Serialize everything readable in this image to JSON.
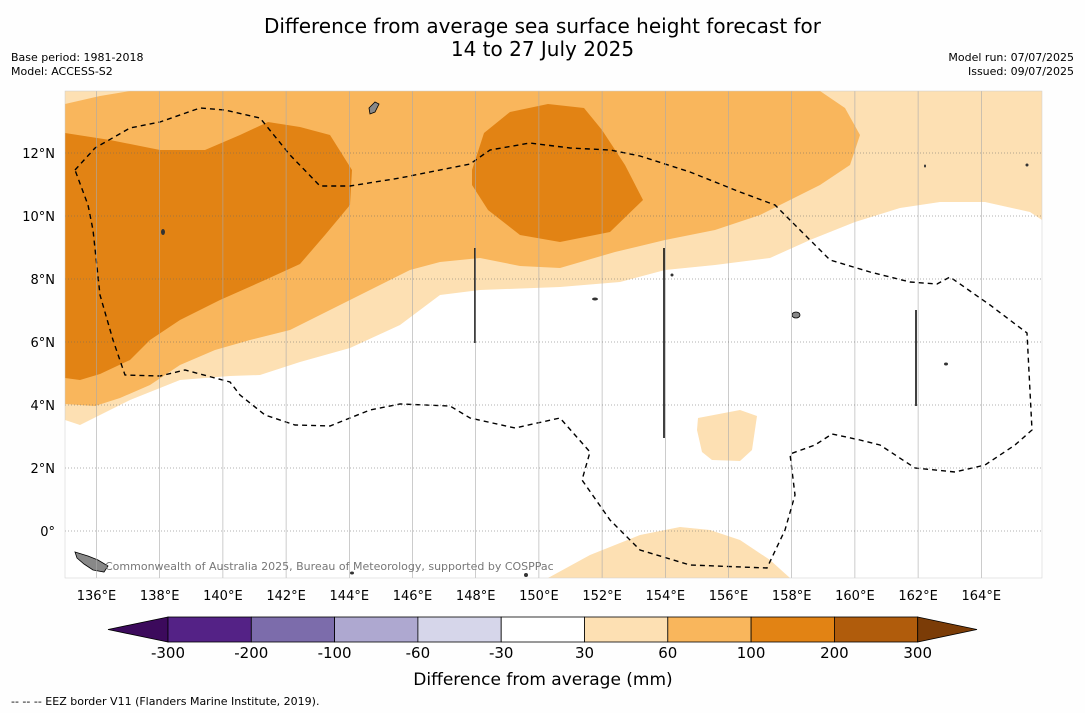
{
  "title": {
    "line1": "Difference from average sea surface height forecast for",
    "line2": "14 to 27 July 2025"
  },
  "meta": {
    "base_period": "Base period: 1981-2018",
    "model": "Model: ACCESS-S2",
    "model_run": "Model run: 07/07/2025",
    "issued": "Issued: 09/07/2025"
  },
  "map": {
    "x_ticks": [
      "136°E",
      "138°E",
      "140°E",
      "142°E",
      "144°E",
      "146°E",
      "148°E",
      "150°E",
      "152°E",
      "154°E",
      "156°E",
      "158°E",
      "160°E",
      "162°E",
      "164°E"
    ],
    "y_ticks": [
      "12°N",
      "10°N",
      "8°N",
      "6°N",
      "4°N",
      "2°N",
      "0°"
    ],
    "copyright": "Commonwealth of Australia 2025, Bureau of Meteorology, supported by COSPPac",
    "colors": {
      "band_30_60": "#fde0b3",
      "band_60_100": "#f9b65c",
      "band_100_200": "#e28314",
      "land": "#888888"
    }
  },
  "colorbar": {
    "title": "Difference from average (mm)",
    "labels": [
      "-300",
      "-200",
      "-100",
      "-60",
      "-30",
      "30",
      "60",
      "100",
      "200",
      "300"
    ],
    "colors": [
      "#3c0a5c",
      "#542286",
      "#7c6cab",
      "#aea8d0",
      "#d6d6ea",
      "#ffffff",
      "#fde0b3",
      "#f9b65c",
      "#e28314",
      "#b05c0c",
      "#7b3c07"
    ]
  },
  "footer": "--  --  -- EEZ border V11 (Flanders Marine Institute, 2019)."
}
